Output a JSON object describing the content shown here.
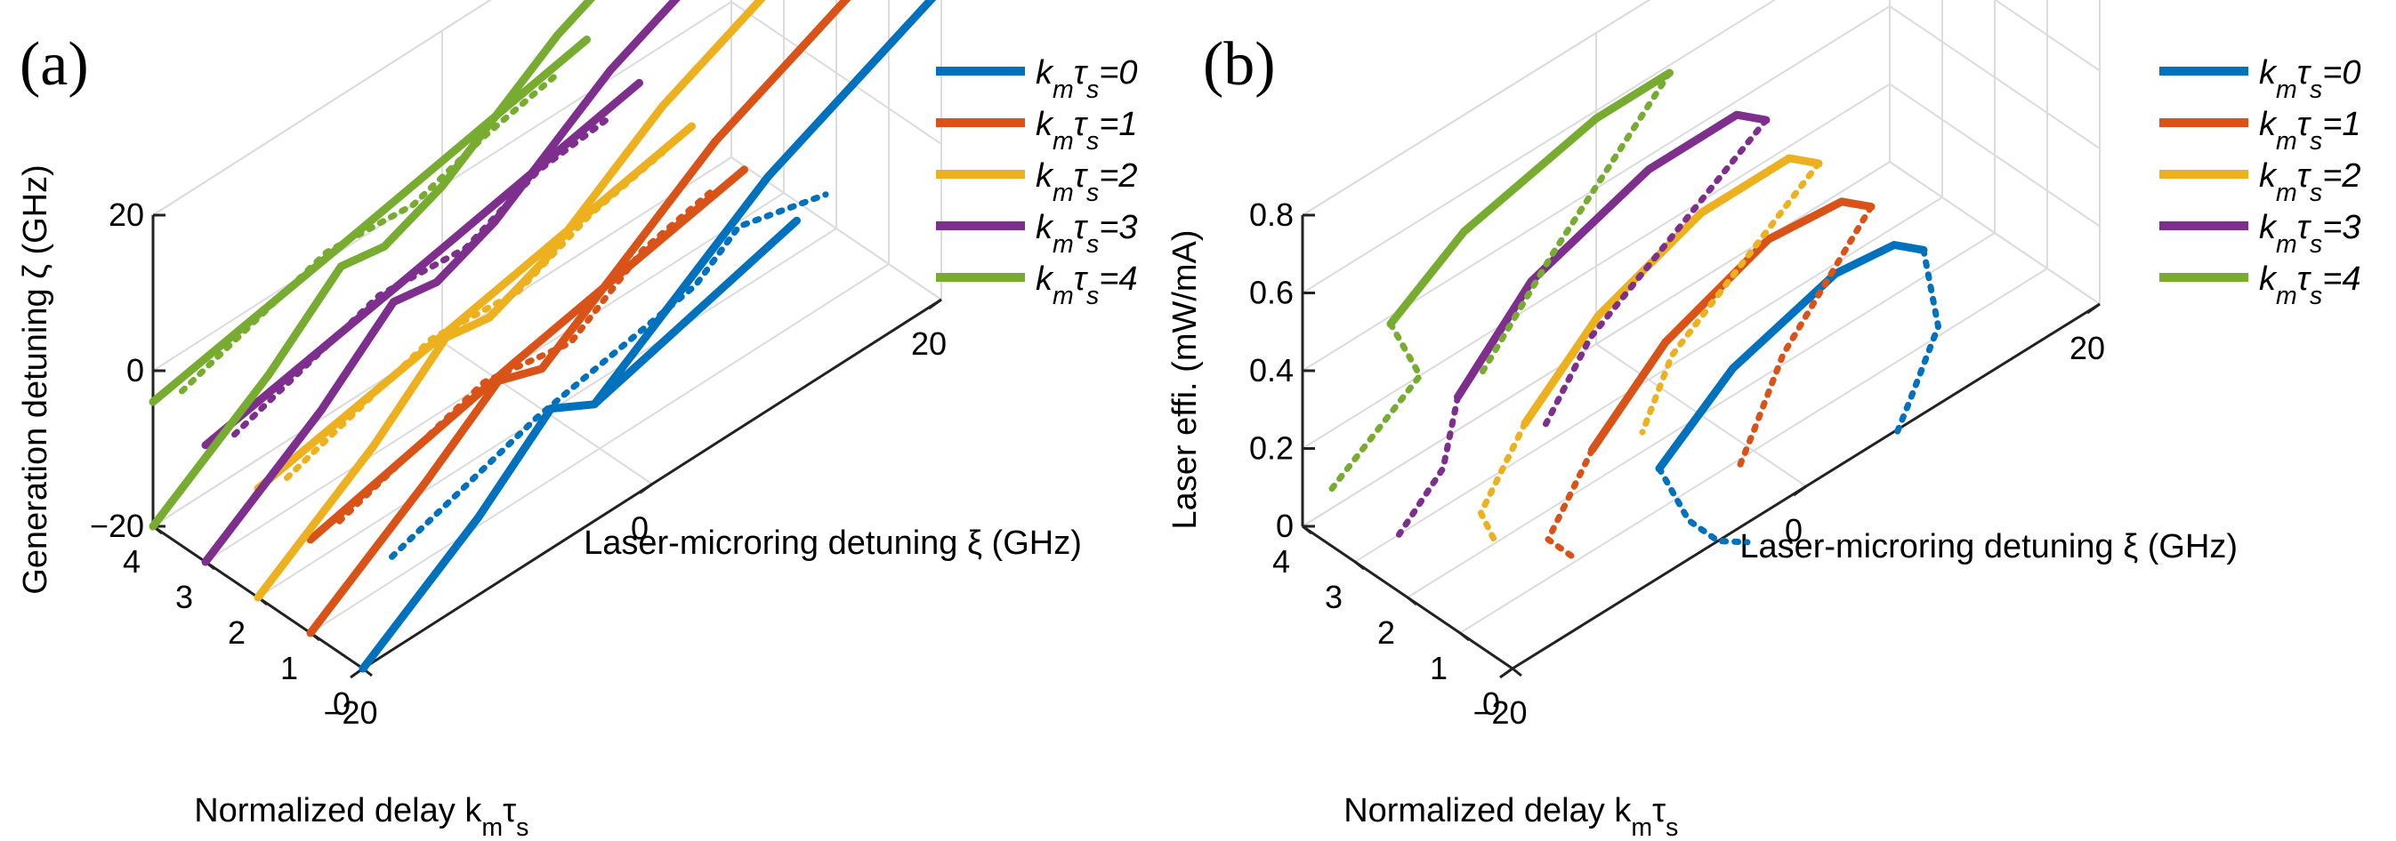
{
  "chart_data": [
    {
      "type": "line3d",
      "panel_label": "(a)",
      "xlabel": "Laser-microring detuning ξ (GHz)",
      "ylabel": "Normalized delay k_mτ_s",
      "zlabel": "Generation detuning ζ (GHz)",
      "xlim": [
        -20,
        20
      ],
      "ylim": [
        0,
        4
      ],
      "zlim": [
        -20,
        20
      ],
      "x_ticks": [
        "−20",
        "0",
        "20"
      ],
      "y_ticks": [
        "0",
        "1",
        "2",
        "3",
        "4"
      ],
      "z_ticks": [
        "−20",
        "0",
        "20"
      ],
      "legend": [
        "k_mτ_s=0",
        "k_mτ_s=1",
        "k_mτ_s=2",
        "k_mτ_s=3",
        "k_mτ_s=4"
      ],
      "series": [
        {
          "name": "k_mτ_s=0",
          "delay": 0,
          "color": "#0072BD",
          "solid": [
            [
              -20,
              -20
            ],
            [
              -12,
              -10
            ],
            [
              -7,
              -2
            ],
            [
              -4,
              -5
            ],
            [
              0,
              0
            ],
            [
              8,
              10
            ],
            [
              20,
              20
            ]
          ],
          "solid_branch": [
            [
              -4,
              -5
            ],
            [
              10,
              2
            ]
          ],
          "dotted": [
            [
              -18,
              -8
            ],
            [
              -8,
              -2
            ],
            [
              3,
              2
            ],
            [
              6,
              6
            ],
            [
              12,
              3
            ]
          ]
        },
        {
          "name": "k_mτ_s=1",
          "delay": 1,
          "color": "#D95319",
          "solid": [
            [
              -20,
              -20
            ],
            [
              -12,
              -10
            ],
            [
              -7,
              -3
            ],
            [
              -4,
              -5
            ],
            [
              0,
              0
            ],
            [
              8,
              10
            ],
            [
              20,
              20
            ]
          ],
          "solid_branch": [
            [
              -20,
              -8
            ],
            [
              -6,
              -2
            ],
            [
              10,
              4
            ]
          ],
          "dotted": [
            [
              -18,
              -8
            ],
            [
              -8,
              -2
            ],
            [
              -2,
              -4
            ],
            [
              3,
              2
            ],
            [
              8,
              4
            ]
          ]
        },
        {
          "name": "k_mτ_s=2",
          "delay": 2,
          "color": "#EDB120",
          "solid": [
            [
              -20,
              -20
            ],
            [
              -12,
              -10
            ],
            [
              -7,
              -2
            ],
            [
              -4,
              -3
            ],
            [
              0,
              0
            ],
            [
              8,
              10
            ],
            [
              20,
              20
            ]
          ],
          "solid_branch": [
            [
              -20,
              -6
            ],
            [
              -6,
              -1
            ],
            [
              10,
              5
            ]
          ],
          "dotted": [
            [
              -18,
              -7
            ],
            [
              -8,
              -1
            ],
            [
              -2,
              -2
            ],
            [
              3,
              2
            ],
            [
              8,
              4
            ]
          ]
        },
        {
          "name": "k_mτ_s=3",
          "delay": 3,
          "color": "#7E2F8E",
          "solid": [
            [
              -20,
              -20
            ],
            [
              -12,
              -10
            ],
            [
              -7,
              -2
            ],
            [
              -4,
              -3
            ],
            [
              0,
              0
            ],
            [
              8,
              10
            ],
            [
              20,
              20
            ]
          ],
          "solid_branch": [
            [
              -20,
              -5
            ],
            [
              -6,
              0
            ],
            [
              10,
              6
            ]
          ],
          "dotted": [
            [
              -18,
              -6
            ],
            [
              -8,
              0
            ],
            [
              -2,
              -1
            ],
            [
              3,
              3
            ],
            [
              8,
              4
            ]
          ]
        },
        {
          "name": "k_mτ_s=4",
          "delay": 4,
          "color": "#77AC30",
          "solid": [
            [
              -20,
              -20
            ],
            [
              -12,
              -10
            ],
            [
              -7,
              -2
            ],
            [
              -4,
              -3
            ],
            [
              0,
              0
            ],
            [
              8,
              10
            ],
            [
              20,
              20
            ]
          ],
          "solid_branch": [
            [
              -20,
              -4
            ],
            [
              -6,
              1
            ],
            [
              10,
              7
            ]
          ],
          "dotted": [
            [
              -18,
              -5
            ],
            [
              -8,
              1
            ],
            [
              -2,
              0
            ],
            [
              3,
              3
            ],
            [
              8,
              5
            ]
          ]
        }
      ]
    },
    {
      "type": "line3d",
      "panel_label": "(b)",
      "xlabel": "Laser-microring detuning ξ (GHz)",
      "ylabel": "Normalized delay k_mτ_s",
      "zlabel": "Laser effi. (mW/mA)",
      "xlim": [
        -20,
        20
      ],
      "ylim": [
        0,
        4
      ],
      "zlim": [
        0,
        0.8
      ],
      "x_ticks": [
        "−20",
        "0",
        "20"
      ],
      "y_ticks": [
        "0",
        "1",
        "2",
        "3",
        "4"
      ],
      "z_ticks": [
        "0",
        "0.2",
        "0.4",
        "0.6",
        "0.8"
      ],
      "legend": [
        "k_mτ_s=0",
        "k_mτ_s=1",
        "k_mτ_s=2",
        "k_mτ_s=3",
        "k_mτ_s=4"
      ],
      "series": [
        {
          "name": "k_mτ_s=0",
          "delay": 0,
          "color": "#0072BD",
          "solid": [
            [
              -10,
              0.28
            ],
            [
              -5,
              0.42
            ],
            [
              2,
              0.5
            ],
            [
              6,
              0.48
            ],
            [
              8,
              0.42
            ]
          ],
          "dotted_a": [
            [
              -10,
              0.28
            ],
            [
              -8,
              0.1
            ],
            [
              -6,
              0.0
            ],
            [
              -4,
              -0.05
            ]
          ],
          "dotted_b": [
            [
              8,
              0.42
            ],
            [
              9,
              0.2
            ],
            [
              7,
              0.05
            ],
            [
              6,
              -0.02
            ]
          ]
        },
        {
          "name": "k_mτ_s=1",
          "delay": 1,
          "color": "#D95319",
          "solid": [
            [
              -11,
              0.26
            ],
            [
              -6,
              0.42
            ],
            [
              1,
              0.52
            ],
            [
              6,
              0.5
            ],
            [
              8,
              0.44
            ]
          ],
          "dotted_a": [
            [
              -11,
              0.26
            ],
            [
              -14,
              0.1
            ],
            [
              -12,
              0.0
            ]
          ],
          "dotted_b": [
            [
              8,
              0.44
            ],
            [
              2,
              0.2
            ],
            [
              0,
              0.05
            ],
            [
              -1,
              -0.02
            ]
          ]
        },
        {
          "name": "k_mτ_s=2",
          "delay": 2,
          "color": "#EDB120",
          "solid": [
            [
              -12,
              0.26
            ],
            [
              -7,
              0.42
            ],
            [
              0,
              0.52
            ],
            [
              6,
              0.52
            ],
            [
              8,
              0.46
            ]
          ],
          "dotted_a": [
            [
              -12,
              0.26
            ],
            [
              -15,
              0.1
            ],
            [
              -14,
              0.0
            ]
          ],
          "dotted_b": [
            [
              8,
              0.46
            ],
            [
              -2,
              0.2
            ],
            [
              -4,
              0.05
            ]
          ]
        },
        {
          "name": "k_mτ_s=3",
          "delay": 3,
          "color": "#7E2F8E",
          "solid": [
            [
              -13,
              0.26
            ],
            [
              -8,
              0.44
            ],
            [
              0,
              0.54
            ],
            [
              6,
              0.54
            ],
            [
              8,
              0.48
            ]
          ],
          "dotted_a": [
            [
              -13,
              0.26
            ],
            [
              -14,
              0.1
            ],
            [
              -17,
              0.0
            ]
          ],
          "dotted_b": [
            [
              8,
              0.48
            ],
            [
              -4,
              0.2
            ],
            [
              -7,
              0.05
            ]
          ]
        },
        {
          "name": "k_mτ_s=4",
          "delay": 4,
          "color": "#77AC30",
          "solid": [
            [
              -14,
              0.38
            ],
            [
              -9,
              0.5
            ],
            [
              0,
              0.58
            ],
            [
              5,
              0.58
            ]
          ],
          "dotted_a": [
            [
              -14,
              0.38
            ],
            [
              -12,
              0.2
            ],
            [
              -18,
              0.05
            ]
          ],
          "dotted_b": [
            [
              5,
              0.58
            ],
            [
              -3,
              0.3
            ],
            [
              -8,
              0.1
            ]
          ]
        }
      ]
    }
  ]
}
